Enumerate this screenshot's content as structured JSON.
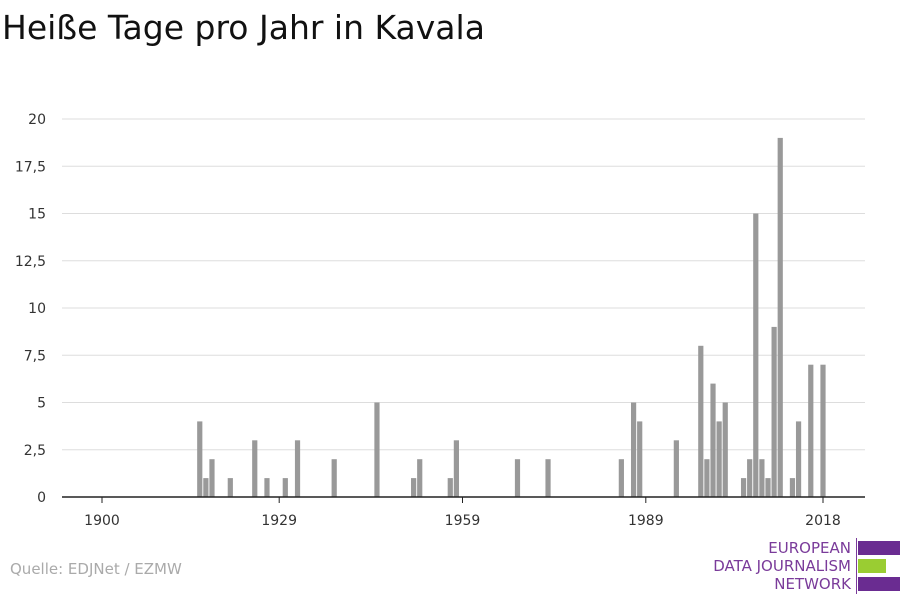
{
  "title": "Heiße Tage pro Jahr in Kavala",
  "source": "Quelle: EDJNet / EZMW",
  "logo": {
    "lines": [
      "EUROPEAN",
      "DATA JOURNALISM",
      "NETWORK"
    ],
    "colors": {
      "purple": "#6a2c91",
      "green": "#9acd32"
    }
  },
  "chart_data": {
    "type": "bar",
    "title": "Heiße Tage pro Jahr in Kavala",
    "xlabel": "",
    "ylabel": "",
    "xlim": [
      1900,
      2018
    ],
    "ylim": [
      0,
      20
    ],
    "x_ticks": [
      1900,
      1929,
      1959,
      1989,
      2018
    ],
    "y_ticks": [
      0,
      2.5,
      5,
      7.5,
      10,
      12.5,
      15,
      17.5,
      20
    ],
    "y_tick_labels": [
      "0",
      "2,5",
      "5",
      "7,5",
      "10",
      "12,5",
      "15",
      "17,5",
      "20"
    ],
    "grid": true,
    "bar_color": "#999999",
    "x": [
      1916,
      1917,
      1918,
      1921,
      1925,
      1927,
      1930,
      1932,
      1938,
      1945,
      1951,
      1952,
      1957,
      1958,
      1968,
      1973,
      1985,
      1987,
      1988,
      1994,
      1998,
      1999,
      2000,
      2001,
      2002,
      2005,
      2006,
      2007,
      2008,
      2009,
      2010,
      2011,
      2013,
      2014,
      2016,
      2018
    ],
    "values": [
      4,
      1,
      2,
      1,
      3,
      1,
      1,
      3,
      2,
      5,
      1,
      2,
      1,
      3,
      2,
      2,
      2,
      5,
      4,
      3,
      8,
      2,
      6,
      4,
      5,
      1,
      2,
      15,
      2,
      1,
      9,
      19,
      1,
      4,
      7,
      7
    ]
  }
}
